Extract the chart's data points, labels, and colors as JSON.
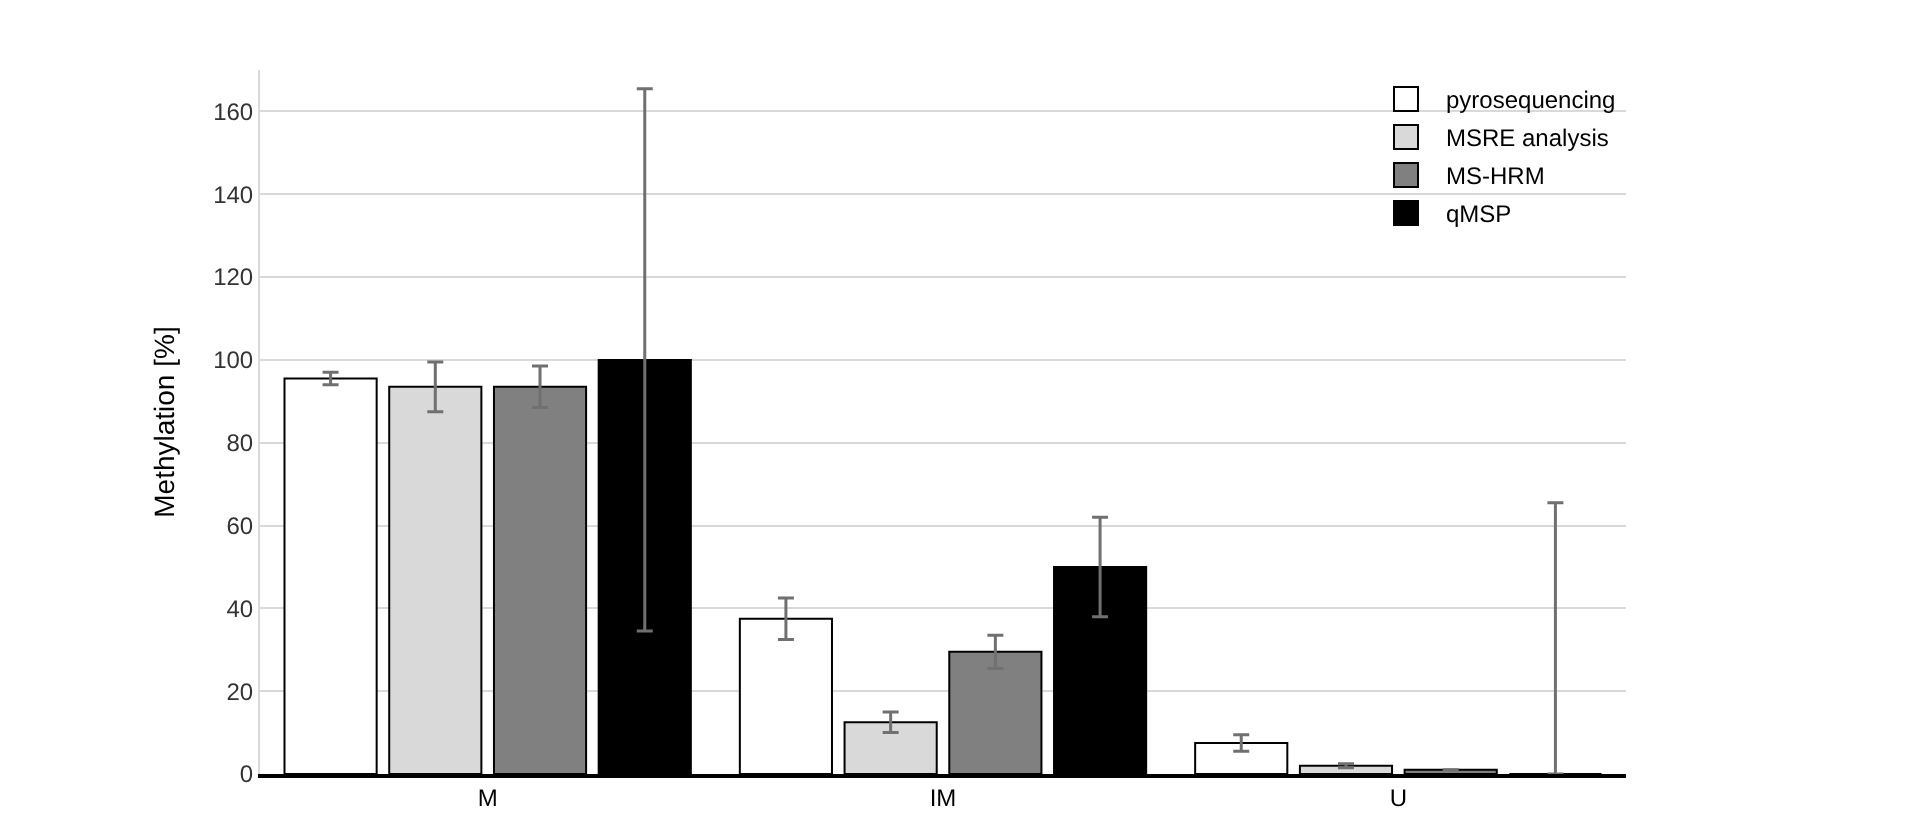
{
  "chart_data": {
    "type": "bar",
    "ylabel": "Methylation [%]",
    "categories": [
      "M",
      "IM",
      "U"
    ],
    "series": [
      {
        "name": "pyrosequencing",
        "color": "#ffffff",
        "values": [
          95.5,
          37.5,
          7.5
        ],
        "errors": [
          1.5,
          5,
          2
        ]
      },
      {
        "name": "MSRE analysis",
        "color": "#d9d9d9",
        "values": [
          93.5,
          12.5,
          2
        ],
        "errors": [
          6,
          2.5,
          0.5
        ]
      },
      {
        "name": "MS-HRM",
        "color": "#808080",
        "values": [
          93.5,
          29.5,
          1
        ],
        "errors": [
          5,
          4,
          null
        ]
      },
      {
        "name": "qMSP",
        "color": "#000000",
        "values": [
          100,
          50,
          0
        ],
        "errors": [
          65.5,
          12,
          [
            0,
            65.5
          ]
        ]
      }
    ],
    "ylim": [
      0,
      170
    ],
    "yticks": [
      0,
      20,
      40,
      60,
      80,
      100,
      120,
      140,
      160
    ],
    "grid": "y",
    "legend": "top right"
  }
}
